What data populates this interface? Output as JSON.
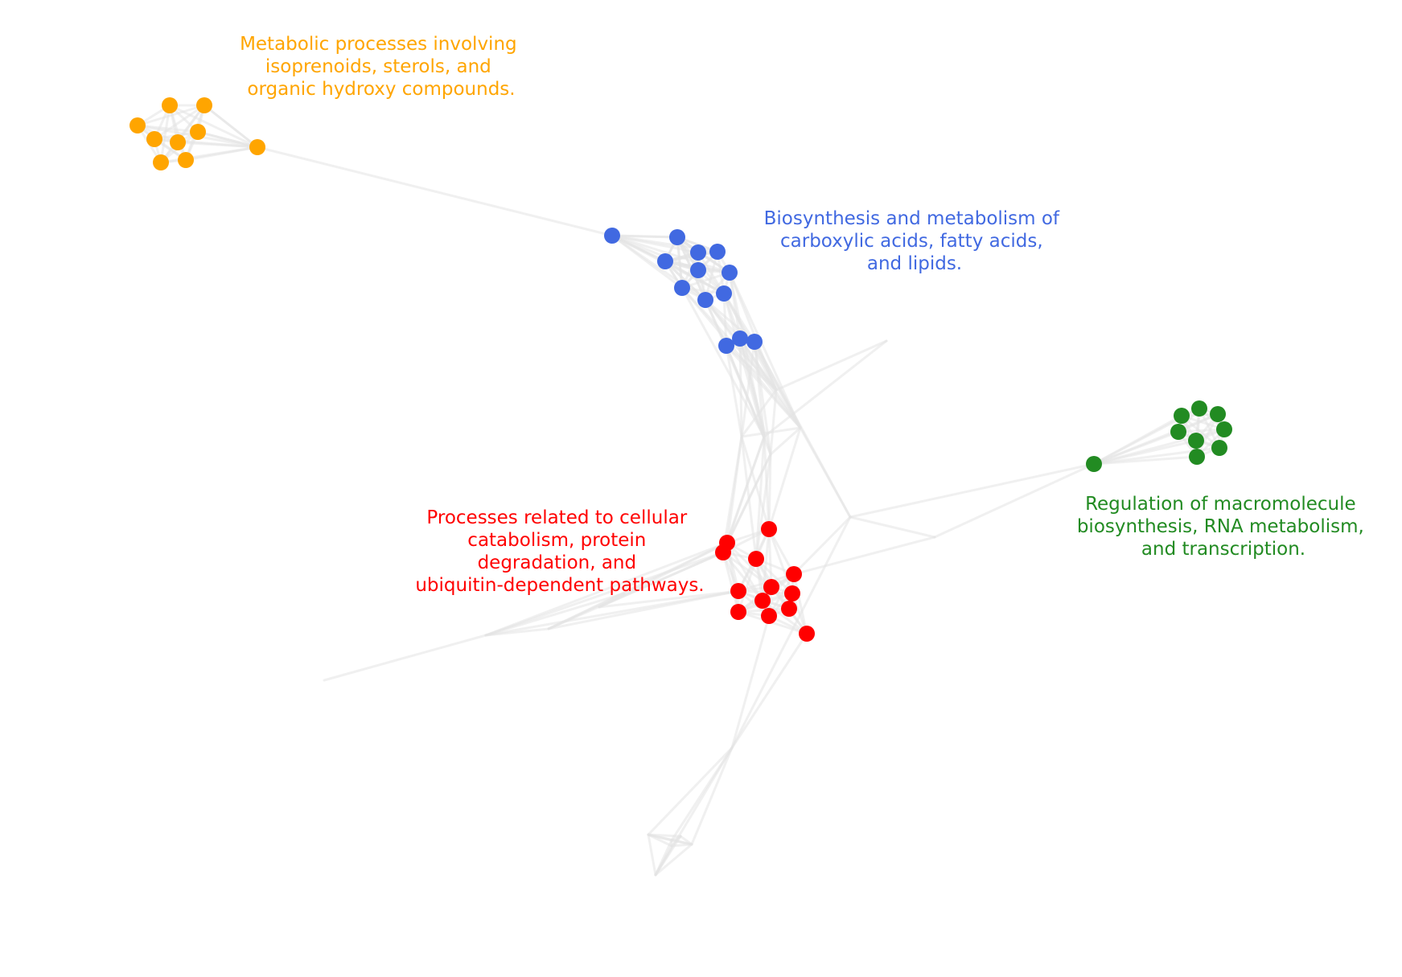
{
  "clusters": [
    {
      "id": "orange",
      "color": "#FFA500",
      "label_lines": [
        "Metabolic processes involving",
        "isoprenoids, sterols, and",
        "organic hydroxy compounds."
      ]
    },
    {
      "id": "blue",
      "color": "#4169E1",
      "label_lines": [
        "Biosynthesis and metabolism of",
        "carboxylic acids, fatty acids,",
        "and lipids."
      ]
    },
    {
      "id": "red",
      "color": "#FF0000",
      "label_lines": [
        "Processes related to cellular",
        "catabolism, protein",
        "degradation, and",
        "ubiquitin-dependent pathways."
      ]
    },
    {
      "id": "green",
      "color": "#228B22",
      "label_lines": [
        "Regulation of macromolecule",
        "biosynthesis, RNA metabolism,",
        "and transcription."
      ]
    }
  ],
  "edge_color": "#e3e3e3"
}
